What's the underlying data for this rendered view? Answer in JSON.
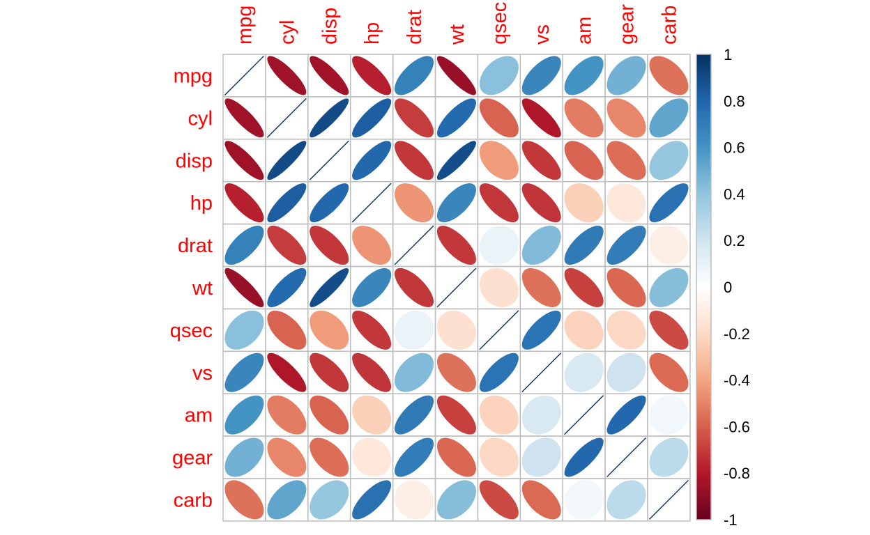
{
  "chart_data": {
    "type": "heatmap",
    "title": "",
    "variables": [
      "mpg",
      "cyl",
      "disp",
      "hp",
      "drat",
      "wt",
      "qsec",
      "vs",
      "am",
      "gear",
      "carb"
    ],
    "matrix": [
      [
        1.0,
        -0.85,
        -0.85,
        -0.78,
        0.68,
        -0.87,
        0.42,
        0.66,
        0.6,
        0.48,
        -0.55
      ],
      [
        -0.85,
        1.0,
        0.9,
        0.83,
        -0.7,
        0.78,
        -0.59,
        -0.81,
        -0.52,
        -0.49,
        0.53
      ],
      [
        -0.85,
        0.9,
        1.0,
        0.79,
        -0.71,
        0.89,
        -0.43,
        -0.71,
        -0.59,
        -0.56,
        0.39
      ],
      [
        -0.78,
        0.83,
        0.79,
        1.0,
        -0.45,
        0.66,
        -0.71,
        -0.72,
        -0.24,
        -0.13,
        0.75
      ],
      [
        0.68,
        -0.7,
        -0.71,
        -0.45,
        1.0,
        -0.71,
        0.09,
        0.44,
        0.71,
        0.7,
        -0.09
      ],
      [
        -0.87,
        0.78,
        0.89,
        0.66,
        -0.71,
        1.0,
        -0.17,
        -0.55,
        -0.69,
        -0.58,
        0.43
      ],
      [
        0.42,
        -0.59,
        -0.43,
        -0.71,
        0.09,
        -0.17,
        1.0,
        0.74,
        -0.23,
        -0.21,
        -0.66
      ],
      [
        0.66,
        -0.81,
        -0.71,
        -0.72,
        0.44,
        -0.55,
        0.74,
        1.0,
        0.17,
        0.21,
        -0.57
      ],
      [
        0.6,
        -0.52,
        -0.59,
        -0.24,
        0.71,
        -0.69,
        -0.23,
        0.17,
        1.0,
        0.79,
        0.06
      ],
      [
        0.48,
        -0.49,
        -0.56,
        -0.13,
        0.7,
        -0.58,
        -0.21,
        0.21,
        0.79,
        1.0,
        0.27
      ],
      [
        -0.55,
        0.53,
        0.39,
        0.75,
        -0.09,
        0.43,
        -0.66,
        -0.57,
        0.06,
        0.27,
        1.0
      ]
    ],
    "colorbar": {
      "range": [
        -1,
        1
      ],
      "ticks": [
        1,
        0.8,
        0.6,
        0.4,
        0.2,
        0,
        -0.2,
        -0.4,
        -0.6,
        -0.8,
        -1
      ],
      "tick_labels": [
        "1",
        "0.8",
        "0.6",
        "0.4",
        "0.2",
        "0",
        "-0.2",
        "-0.4",
        "-0.6",
        "-0.8",
        "-1"
      ],
      "colors": [
        "#67001F",
        "#B2182B",
        "#D6604D",
        "#F4A582",
        "#FDDBC7",
        "#FFFFFF",
        "#D1E5F0",
        "#92C5DE",
        "#4393C3",
        "#2166AC",
        "#053061"
      ]
    },
    "label_color": "#FF0000",
    "grid_color": "#BEBEBE",
    "grid": true,
    "legend": "right"
  }
}
